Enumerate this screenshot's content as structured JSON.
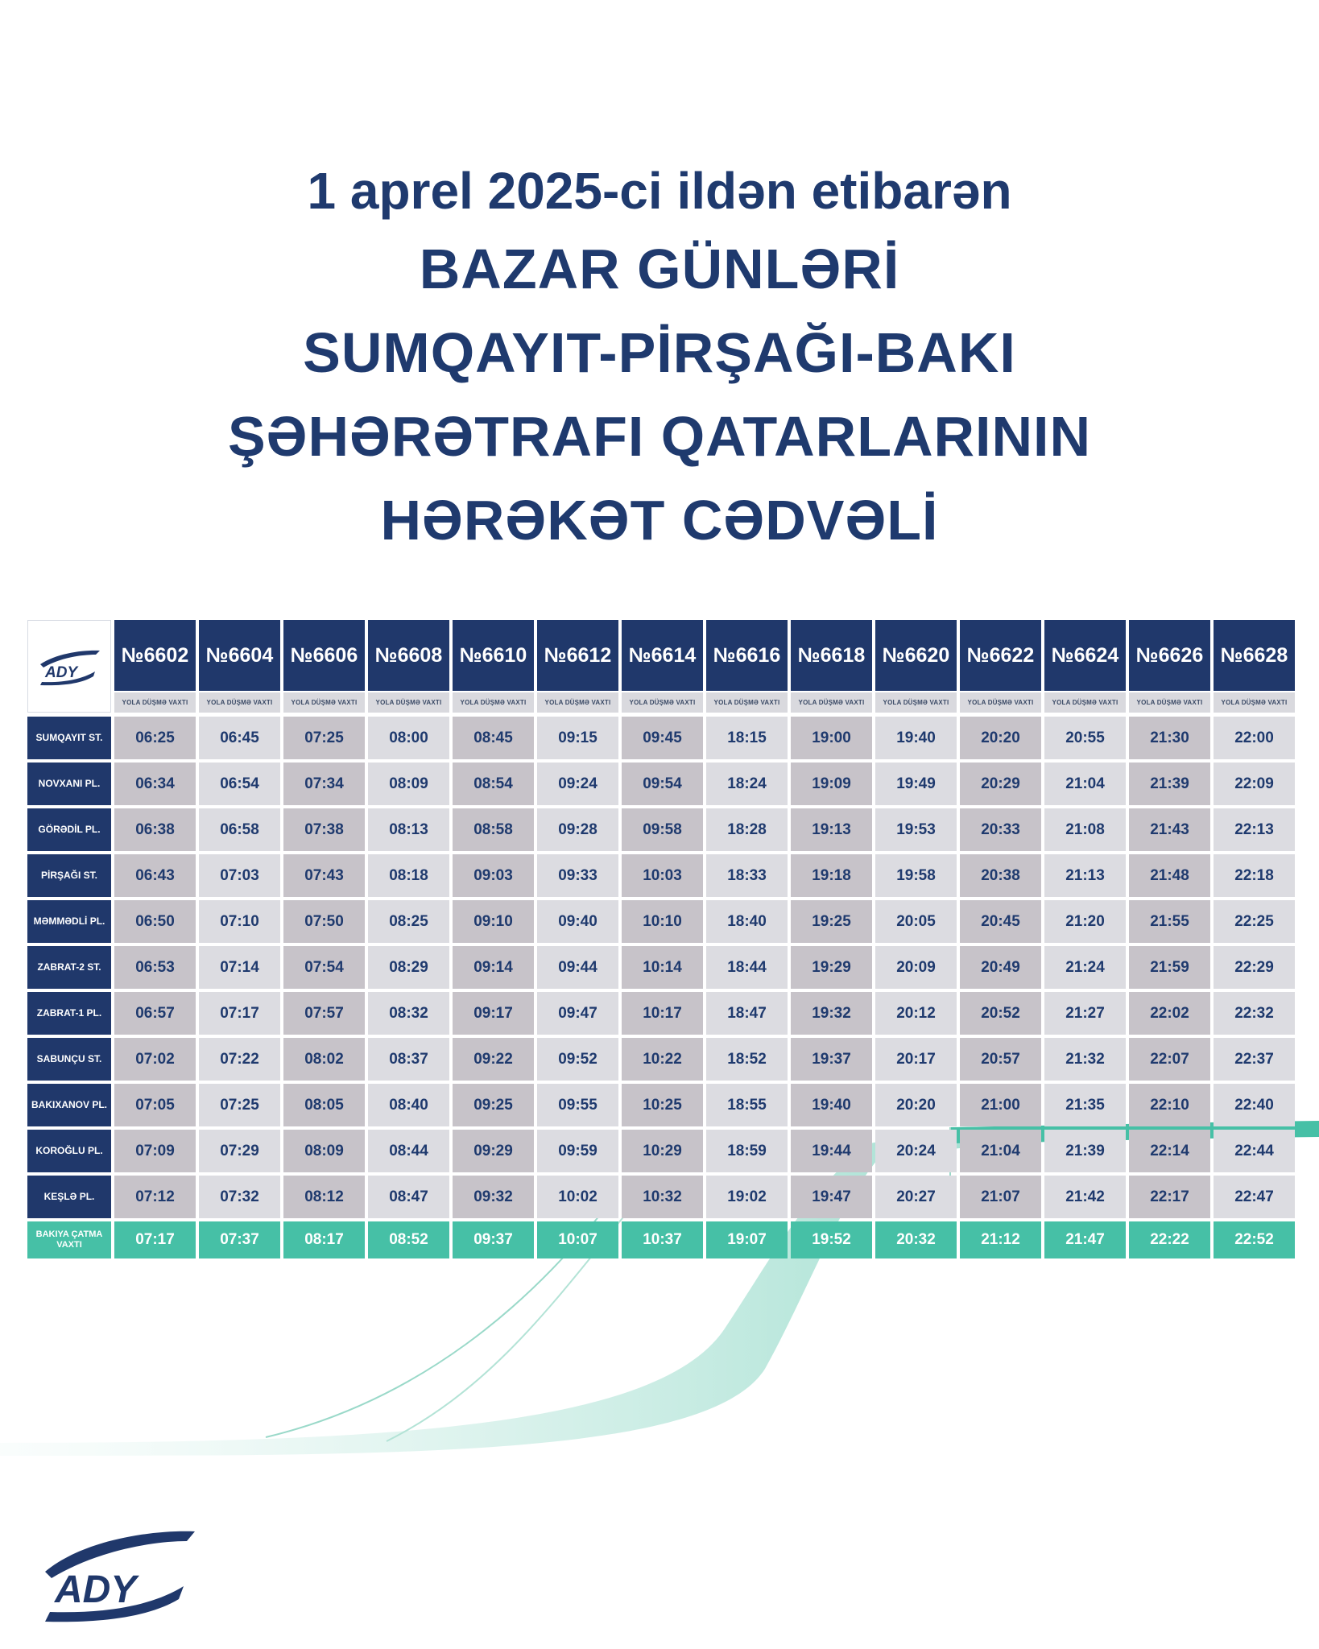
{
  "title": {
    "line1": "1 aprel 2025-ci ildən etibarən",
    "line2": "BAZAR GÜNLƏRİ",
    "line3": "SUMQAYIT-PİRŞAĞI-BAKI",
    "line4": "ŞƏHƏRƏTRAFI QATARLARININ",
    "line5": "HƏRƏKƏT CƏDVƏLİ"
  },
  "brand": {
    "logo_text": "ADY",
    "navy": "#20386b",
    "teal": "#46c0a6"
  },
  "trains": [
    "№6602",
    "№6604",
    "№6606",
    "№6608",
    "№6610",
    "№6612",
    "№6614",
    "№6616",
    "№6618",
    "№6620",
    "№6622",
    "№6624",
    "№6626",
    "№6628"
  ],
  "departure_label": "YOLA DÜŞMƏ VAXTI",
  "stations": [
    {
      "name": "SUMQAYIT ST.",
      "times": [
        "06:25",
        "06:45",
        "07:25",
        "08:00",
        "08:45",
        "09:15",
        "09:45",
        "18:15",
        "19:00",
        "19:40",
        "20:20",
        "20:55",
        "21:30",
        "22:00"
      ]
    },
    {
      "name": "NOVXANI PL.",
      "times": [
        "06:34",
        "06:54",
        "07:34",
        "08:09",
        "08:54",
        "09:24",
        "09:54",
        "18:24",
        "19:09",
        "19:49",
        "20:29",
        "21:04",
        "21:39",
        "22:09"
      ]
    },
    {
      "name": "GÖRƏDİL PL.",
      "times": [
        "06:38",
        "06:58",
        "07:38",
        "08:13",
        "08:58",
        "09:28",
        "09:58",
        "18:28",
        "19:13",
        "19:53",
        "20:33",
        "21:08",
        "21:43",
        "22:13"
      ]
    },
    {
      "name": "PİRŞAĞI ST.",
      "times": [
        "06:43",
        "07:03",
        "07:43",
        "08:18",
        "09:03",
        "09:33",
        "10:03",
        "18:33",
        "19:18",
        "19:58",
        "20:38",
        "21:13",
        "21:48",
        "22:18"
      ]
    },
    {
      "name": "MƏMMƏDLİ PL.",
      "times": [
        "06:50",
        "07:10",
        "07:50",
        "08:25",
        "09:10",
        "09:40",
        "10:10",
        "18:40",
        "19:25",
        "20:05",
        "20:45",
        "21:20",
        "21:55",
        "22:25"
      ]
    },
    {
      "name": "ZABRAT-2 ST.",
      "times": [
        "06:53",
        "07:14",
        "07:54",
        "08:29",
        "09:14",
        "09:44",
        "10:14",
        "18:44",
        "19:29",
        "20:09",
        "20:49",
        "21:24",
        "21:59",
        "22:29"
      ]
    },
    {
      "name": "ZABRAT-1 PL.",
      "times": [
        "06:57",
        "07:17",
        "07:57",
        "08:32",
        "09:17",
        "09:47",
        "10:17",
        "18:47",
        "19:32",
        "20:12",
        "20:52",
        "21:27",
        "22:02",
        "22:32"
      ]
    },
    {
      "name": "SABUNÇU ST.",
      "times": [
        "07:02",
        "07:22",
        "08:02",
        "08:37",
        "09:22",
        "09:52",
        "10:22",
        "18:52",
        "19:37",
        "20:17",
        "20:57",
        "21:32",
        "22:07",
        "22:37"
      ]
    },
    {
      "name": "BAKIXANOV PL.",
      "times": [
        "07:05",
        "07:25",
        "08:05",
        "08:40",
        "09:25",
        "09:55",
        "10:25",
        "18:55",
        "19:40",
        "20:20",
        "21:00",
        "21:35",
        "22:10",
        "22:40"
      ]
    },
    {
      "name": "KOROĞLU PL.",
      "times": [
        "07:09",
        "07:29",
        "08:09",
        "08:44",
        "09:29",
        "09:59",
        "10:29",
        "18:59",
        "19:44",
        "20:24",
        "21:04",
        "21:39",
        "22:14",
        "22:44"
      ]
    },
    {
      "name": "KEŞLƏ PL.",
      "times": [
        "07:12",
        "07:32",
        "08:12",
        "08:47",
        "09:32",
        "10:02",
        "10:32",
        "19:02",
        "19:47",
        "20:27",
        "21:07",
        "21:42",
        "22:17",
        "22:47"
      ]
    }
  ],
  "arrival": {
    "label": "BAKIYA ÇATMA VAXTI",
    "times": [
      "07:17",
      "07:37",
      "08:17",
      "08:52",
      "09:37",
      "10:07",
      "10:37",
      "19:07",
      "19:52",
      "20:32",
      "21:12",
      "21:47",
      "22:22",
      "22:52"
    ]
  }
}
